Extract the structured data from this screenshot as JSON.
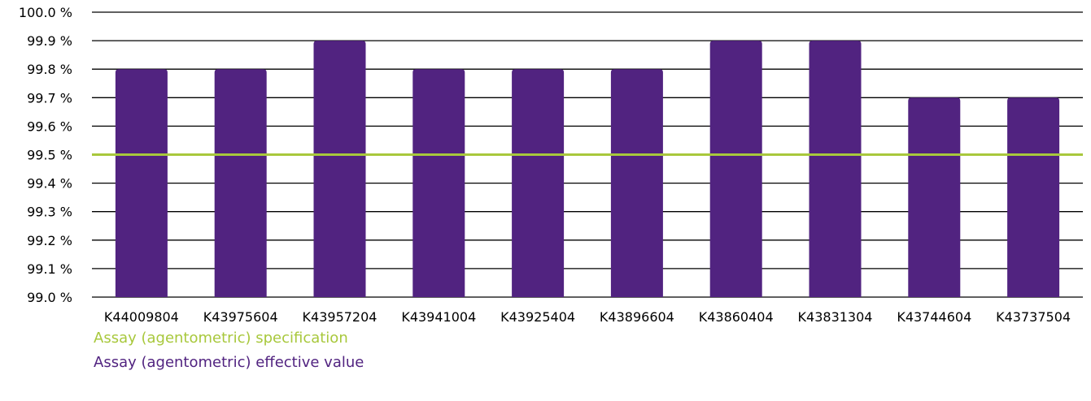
{
  "chart_data": {
    "type": "bar",
    "title": "",
    "xlabel": "",
    "ylabel": "",
    "categories": [
      "K44009804",
      "K43975604",
      "K43957204",
      "K43941004",
      "K43925404",
      "K43896604",
      "K43860404",
      "K43831304",
      "K43744604",
      "K43737504"
    ],
    "series": [
      {
        "name": "Assay (agentometric) effective value",
        "values": [
          99.8,
          99.8,
          99.9,
          99.8,
          99.8,
          99.8,
          99.9,
          99.9,
          99.7,
          99.7
        ],
        "color": "#512380"
      }
    ],
    "reference_lines": [
      {
        "name": "Assay (agentometric) specification",
        "value": 99.5,
        "color": "#a8c83c"
      }
    ],
    "ylim": [
      99.0,
      100.0
    ],
    "yticks": [
      "99.0 %",
      "99.1 %",
      "99.2 %",
      "99.3 %",
      "99.4 %",
      "99.5 %",
      "99.6 %",
      "99.7 %",
      "99.8 %",
      "99.9 %",
      "100.0 %"
    ],
    "grid": true,
    "legend_position": "bottom-left",
    "legend": [
      {
        "label": "Assay (agentometric) specification",
        "color": "#a8c83c"
      },
      {
        "label": "Assay (agentometric) effective value",
        "color": "#512380"
      }
    ]
  }
}
